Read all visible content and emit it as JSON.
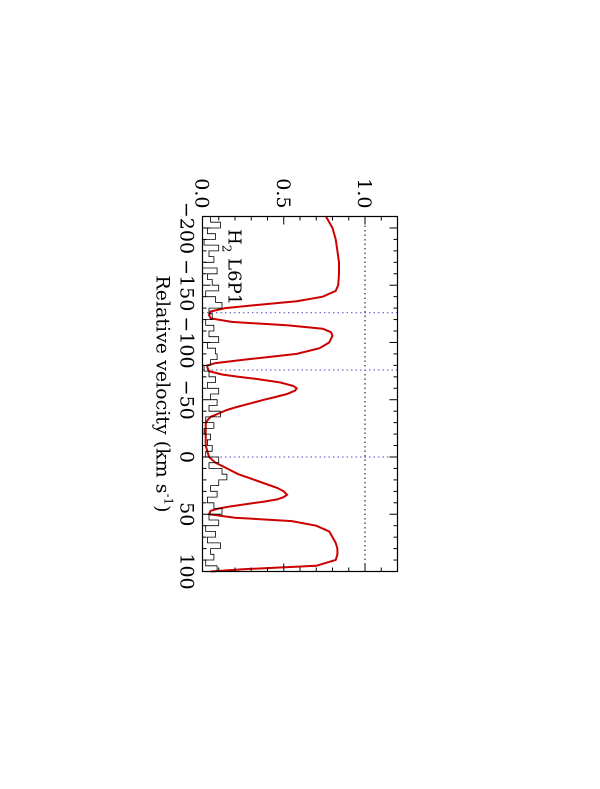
{
  "chart_data": {
    "type": "line",
    "title": "",
    "line_label": "H2 L6P1",
    "line_label_parts": {
      "species": "H",
      "subscript": "2",
      "transition": " L6P1"
    },
    "xlabel": "Relative velocity (km s",
    "xlabel_exp": "-1",
    "xlabel_close": ")",
    "ylabel": "",
    "xlim": [
      -210,
      100
    ],
    "ylim": [
      0,
      1.2
    ],
    "x_ticks": [
      -200,
      -150,
      -100,
      -50,
      0,
      50,
      100
    ],
    "x_tick_labels": [
      "−200",
      "−150",
      "−100",
      "−50",
      "0",
      "50",
      "100"
    ],
    "y_ticks": [
      0.0,
      0.5,
      1.0
    ],
    "y_tick_labels": [
      "0.0",
      "0.5",
      "1.0"
    ],
    "continuum_level": 1.0,
    "velocity_markers": [
      -126,
      -76,
      0
    ],
    "orientation": "rotated 90 degrees clockwise",
    "colors": {
      "model": "#cc0000",
      "marker": "#4a4acc",
      "data": "#000000"
    },
    "series": [
      {
        "type": "model",
        "x": [
          -210,
          -200,
          -190,
          -180,
          -170,
          -160,
          -150,
          -145,
          -140,
          -136,
          -133,
          -130,
          -127,
          -124,
          -121,
          -118,
          -115,
          -112,
          -109,
          -106,
          -103,
          -100,
          -95,
          -90,
          -88,
          -85,
          -82,
          -80,
          -78,
          -75,
          -72,
          -70,
          -68,
          -65,
          -62,
          -60,
          -58,
          -55,
          -52,
          -50,
          -47,
          -44,
          -41,
          -38,
          -35,
          -32,
          -29,
          -26,
          -23,
          -20,
          -15,
          -10,
          -5,
          0,
          5,
          10,
          15,
          18,
          21,
          24,
          27,
          30,
          33,
          35,
          37,
          39,
          41,
          43,
          45,
          47,
          50,
          53,
          56,
          60,
          65,
          70,
          75,
          80,
          85,
          90,
          95,
          98,
          100
        ],
        "y": [
          0.76,
          0.8,
          0.82,
          0.83,
          0.84,
          0.84,
          0.835,
          0.82,
          0.74,
          0.58,
          0.35,
          0.14,
          0.05,
          0.04,
          0.05,
          0.18,
          0.52,
          0.74,
          0.79,
          0.8,
          0.79,
          0.78,
          0.72,
          0.58,
          0.45,
          0.26,
          0.08,
          0.03,
          0.03,
          0.04,
          0.12,
          0.22,
          0.34,
          0.48,
          0.56,
          0.58,
          0.57,
          0.52,
          0.44,
          0.38,
          0.3,
          0.22,
          0.15,
          0.1,
          0.05,
          0.03,
          0.02,
          0.02,
          0.02,
          0.02,
          0.02,
          0.02,
          0.03,
          0.04,
          0.08,
          0.15,
          0.22,
          0.28,
          0.34,
          0.4,
          0.46,
          0.5,
          0.52,
          0.5,
          0.46,
          0.38,
          0.28,
          0.18,
          0.1,
          0.05,
          0.04,
          0.2,
          0.55,
          0.7,
          0.78,
          0.8,
          0.82,
          0.83,
          0.83,
          0.82,
          0.7,
          0.25,
          0.05
        ]
      },
      {
        "type": "data",
        "x": [
          -210,
          -205,
          -200,
          -195,
          -190,
          -185,
          -180,
          -175,
          -170,
          -165,
          -160,
          -155,
          -150,
          -145,
          -140,
          -135,
          -130,
          -125,
          -120,
          -115,
          -110,
          -105,
          -100,
          -95,
          -90,
          -85,
          -80,
          -75,
          -70,
          -65,
          -60,
          -55,
          -50,
          -45,
          -40,
          -35,
          -30,
          -25,
          -20,
          -15,
          -10,
          -5,
          0,
          5,
          10,
          15,
          20,
          25,
          30,
          35,
          40,
          45,
          50,
          55,
          60,
          65,
          70,
          75,
          80,
          85,
          90,
          95,
          100
        ],
        "y": [
          0.05,
          0.11,
          0.03,
          0.08,
          0.01,
          0.1,
          0.04,
          0.07,
          0.0,
          0.09,
          0.03,
          0.06,
          0.1,
          0.02,
          0.08,
          0.12,
          0.04,
          0.06,
          0.02,
          0.07,
          0.04,
          0.1,
          0.03,
          0.08,
          0.09,
          0.05,
          0.01,
          0.04,
          0.08,
          0.03,
          0.1,
          0.05,
          0.09,
          0.04,
          0.11,
          0.02,
          0.07,
          0.01,
          0.05,
          0.03,
          0.06,
          0.02,
          0.1,
          0.04,
          0.12,
          0.15,
          0.1,
          0.05,
          0.09,
          0.03,
          0.07,
          0.12,
          0.04,
          0.1,
          0.02,
          0.08,
          0.03,
          0.11,
          0.05,
          0.07,
          0.02,
          0.09,
          0.04
        ]
      }
    ]
  }
}
